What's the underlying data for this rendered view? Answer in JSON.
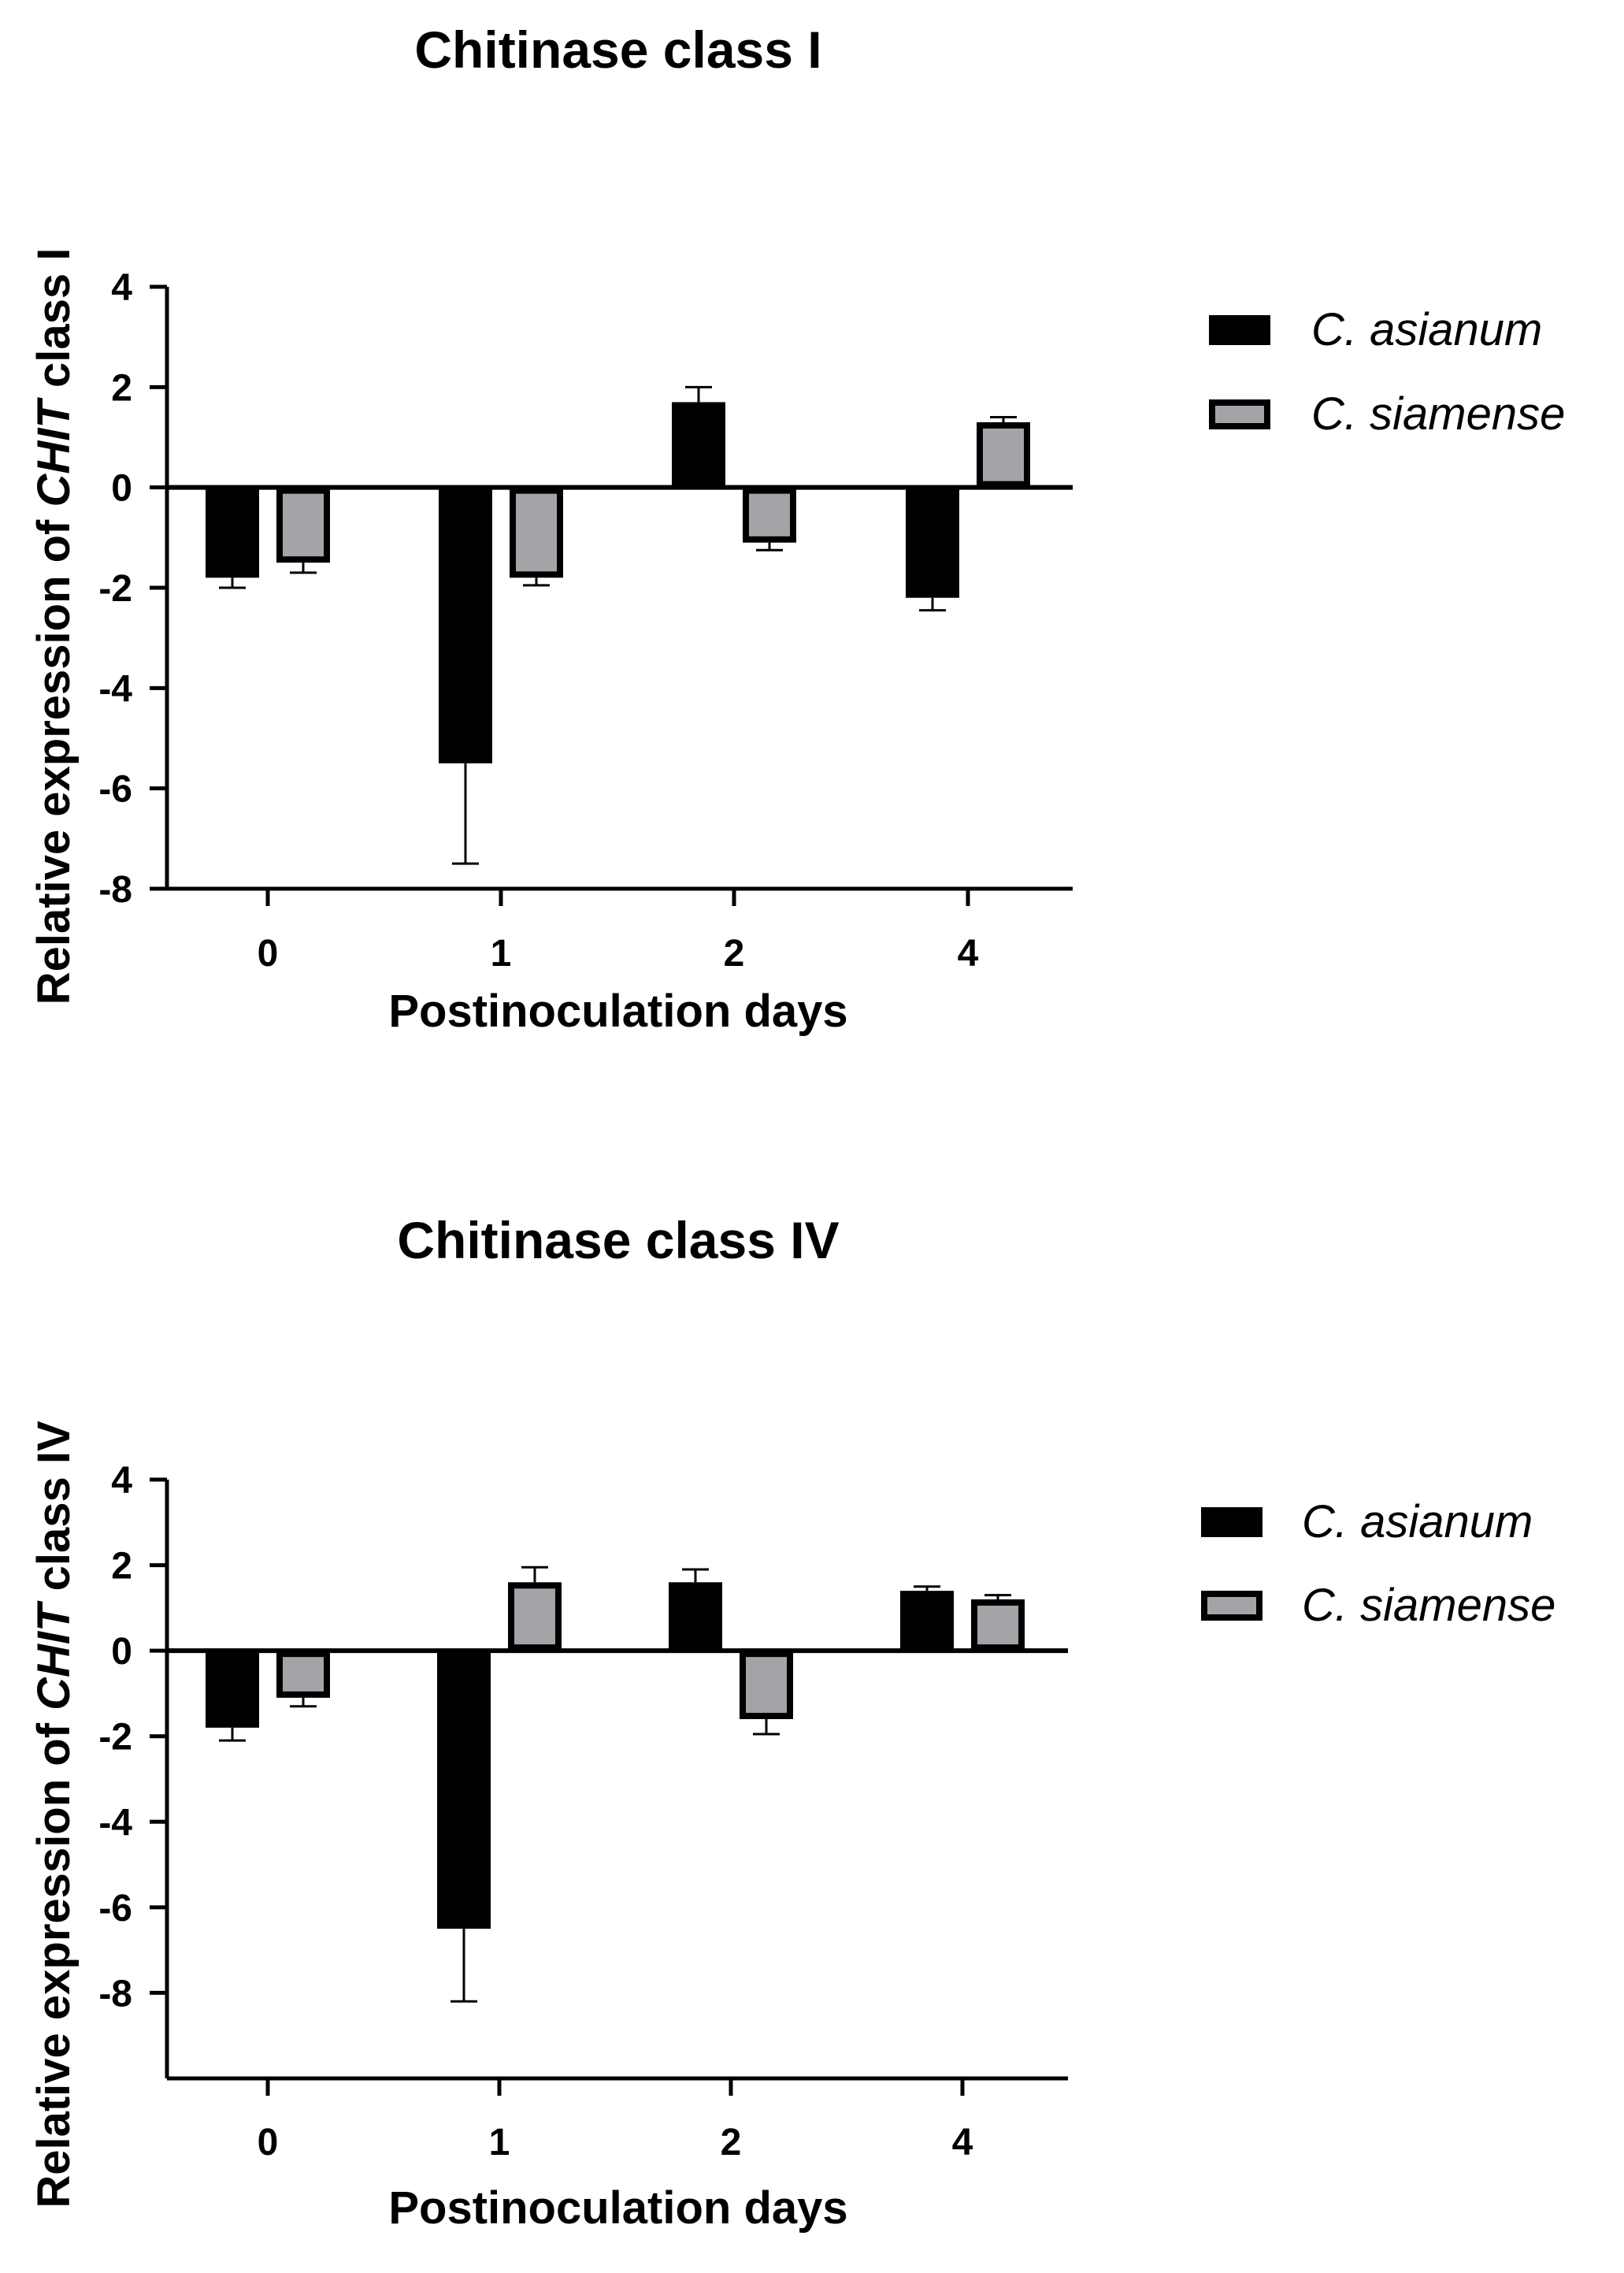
{
  "chart_data": [
    {
      "type": "bar",
      "title": "Chitinase class I",
      "xlabel": "Postinoculation days",
      "ylabel_parts": [
        "Relative expression of ",
        "CHIT",
        " class I"
      ],
      "categories": [
        "0",
        "1",
        "2",
        "4"
      ],
      "ylim": [
        -8,
        4
      ],
      "yticks": [
        "4",
        "2",
        "0",
        "-2",
        "-4",
        "-6",
        "-8"
      ],
      "grid": false,
      "legend_position": "right",
      "series": [
        {
          "name": "C. asianum",
          "color": "#000000",
          "values": [
            -1.8,
            -5.5,
            1.7,
            -2.2
          ],
          "errors": [
            0.2,
            2.0,
            0.3,
            0.25
          ]
        },
        {
          "name": "C. siamense",
          "color": "#a4a4a8",
          "values": [
            -1.5,
            -1.8,
            -1.1,
            1.3
          ],
          "errors": [
            0.2,
            0.15,
            0.15,
            0.1
          ]
        }
      ]
    },
    {
      "type": "bar",
      "title": "Chitinase class IV",
      "xlabel": "Postinoculation days",
      "ylabel_parts": [
        "Relative expression of ",
        "CHIT",
        " class IV"
      ],
      "categories": [
        "0",
        "1",
        "2",
        "4"
      ],
      "ylim": [
        -10,
        4
      ],
      "yticks": [
        "4",
        "2",
        "0",
        "-2",
        "-4",
        "-6",
        "-8"
      ],
      "grid": false,
      "legend_position": "right",
      "series": [
        {
          "name": "C. asianum",
          "color": "#000000",
          "values": [
            -1.8,
            -6.5,
            1.6,
            1.4
          ],
          "errors": [
            0.3,
            1.7,
            0.3,
            0.1
          ]
        },
        {
          "name": "C. siamense",
          "color": "#a4a4a8",
          "values": [
            -1.1,
            1.6,
            -1.6,
            1.2
          ],
          "errors": [
            0.2,
            0.35,
            0.35,
            0.1
          ]
        }
      ]
    }
  ]
}
